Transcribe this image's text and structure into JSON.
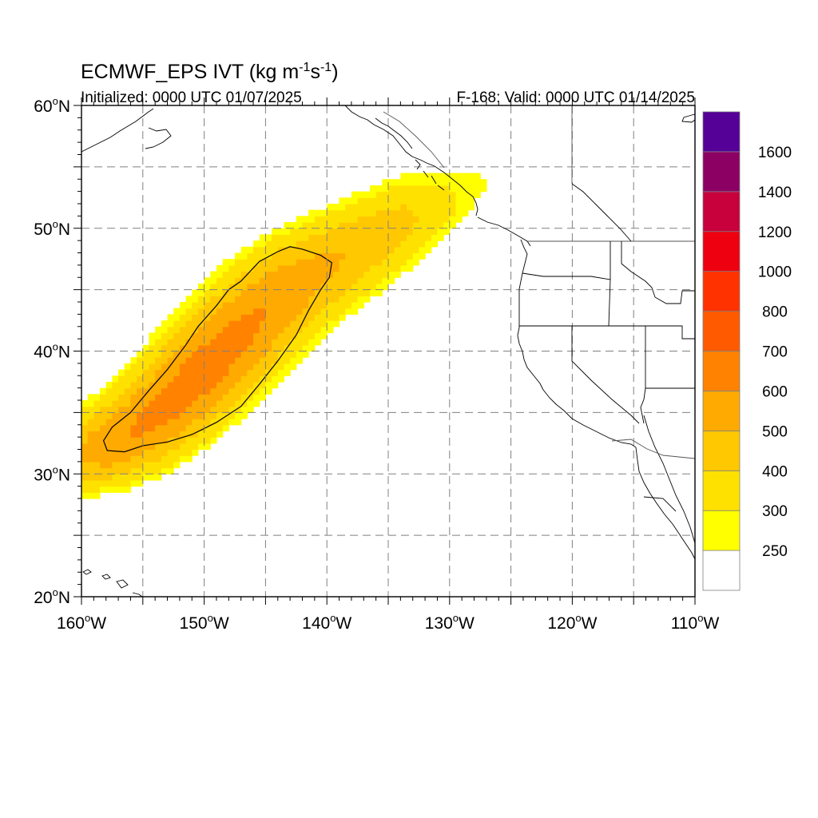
{
  "title": {
    "model": "ECMWF_EPS",
    "field": "IVT",
    "units_prefix": "(kg m",
    "units_exp1": "-1",
    "units_mid": "s",
    "units_exp2": "-1",
    "units_suffix": ")"
  },
  "subtitle_left": "Initialized: 0000 UTC 01/07/2025",
  "subtitle_right": "F-168: Valid: 0000 UTC 01/14/2025",
  "map": {
    "lon_range": [
      -160,
      -110
    ],
    "lat_range": [
      20,
      60
    ],
    "grid": "dashed",
    "lon_labels": [
      {
        "lon": -160,
        "text": "160",
        "hemi": "W"
      },
      {
        "lon": -150,
        "text": "150",
        "hemi": "W"
      },
      {
        "lon": -140,
        "text": "140",
        "hemi": "W"
      },
      {
        "lon": -130,
        "text": "130",
        "hemi": "W"
      },
      {
        "lon": -120,
        "text": "120",
        "hemi": "W"
      },
      {
        "lon": -110,
        "text": "110",
        "hemi": "W"
      }
    ],
    "lat_labels": [
      {
        "lat": 60,
        "text": "60",
        "hemi": "N"
      },
      {
        "lat": 50,
        "text": "50",
        "hemi": "N"
      },
      {
        "lat": 40,
        "text": "40",
        "hemi": "N"
      },
      {
        "lat": 30,
        "text": "30",
        "hemi": "N"
      },
      {
        "lat": 20,
        "text": "20",
        "hemi": "N"
      }
    ],
    "colors": {
      "grid": "#808080",
      "coast": "#000000",
      "border": "#000000",
      "frame": "#000000"
    }
  },
  "chart_data": {
    "type": "heatmap",
    "variable": "IVT",
    "units": "kg m-1 s-1",
    "color_levels": [
      {
        "min": 0,
        "max": 250,
        "color": "#ffffff"
      },
      {
        "min": 250,
        "max": 300,
        "color": "#ffff00"
      },
      {
        "min": 300,
        "max": 400,
        "color": "#ffe100"
      },
      {
        "min": 400,
        "max": 500,
        "color": "#ffc800"
      },
      {
        "min": 500,
        "max": 600,
        "color": "#ffaa00"
      },
      {
        "min": 600,
        "max": 700,
        "color": "#ff8200"
      },
      {
        "min": 700,
        "max": 800,
        "color": "#ff5a00"
      },
      {
        "min": 800,
        "max": 1000,
        "color": "#ff3200"
      },
      {
        "min": 1000,
        "max": 1200,
        "color": "#ee0010"
      },
      {
        "min": 1200,
        "max": 1400,
        "color": "#c8003c"
      },
      {
        "min": 1400,
        "max": 1600,
        "color": "#8c0064"
      },
      {
        "min": 1600,
        "max": 1800,
        "color": "#550096"
      }
    ],
    "colorbar_labels": [
      "250",
      "300",
      "400",
      "500",
      "600",
      "700",
      "800",
      "1000",
      "1200",
      "1400",
      "1600"
    ],
    "plume": {
      "axis": [
        {
          "lon": -160.0,
          "lat": 31.5
        },
        {
          "lon": -157.5,
          "lat": 32.5
        },
        {
          "lon": -155.0,
          "lat": 34.0
        },
        {
          "lon": -152.5,
          "lat": 36.0
        },
        {
          "lon": -150.0,
          "lat": 38.5
        },
        {
          "lon": -147.5,
          "lat": 41.0
        },
        {
          "lon": -145.0,
          "lat": 43.5
        },
        {
          "lon": -142.5,
          "lat": 45.5
        },
        {
          "lon": -140.0,
          "lat": 47.0
        },
        {
          "lon": -137.5,
          "lat": 48.5
        },
        {
          "lon": -135.0,
          "lat": 50.0
        },
        {
          "lon": -132.5,
          "lat": 51.5
        },
        {
          "lon": -130.0,
          "lat": 52.5
        },
        {
          "lon": -128.0,
          "lat": 53.5
        }
      ],
      "max_ivt": 650
    },
    "contour": {
      "level": 500,
      "ring": [
        {
          "lon": -157.9,
          "lat": 31.9
        },
        {
          "lon": -156.5,
          "lat": 31.8
        },
        {
          "lon": -155.0,
          "lat": 32.3
        },
        {
          "lon": -153.0,
          "lat": 32.6
        },
        {
          "lon": -151.0,
          "lat": 33.2
        },
        {
          "lon": -149.0,
          "lat": 34.2
        },
        {
          "lon": -147.0,
          "lat": 35.5
        },
        {
          "lon": -145.5,
          "lat": 37.3
        },
        {
          "lon": -144.0,
          "lat": 39.2
        },
        {
          "lon": -142.5,
          "lat": 41.3
        },
        {
          "lon": -141.5,
          "lat": 43.3
        },
        {
          "lon": -140.5,
          "lat": 45.0
        },
        {
          "lon": -139.8,
          "lat": 46.0
        },
        {
          "lon": -139.6,
          "lat": 47.2
        },
        {
          "lon": -140.5,
          "lat": 47.8
        },
        {
          "lon": -142.0,
          "lat": 48.3
        },
        {
          "lon": -143.0,
          "lat": 48.5
        },
        {
          "lon": -144.0,
          "lat": 48.1
        },
        {
          "lon": -145.5,
          "lat": 47.3
        },
        {
          "lon": -147.0,
          "lat": 45.7
        },
        {
          "lon": -148.0,
          "lat": 45.0
        },
        {
          "lon": -149.0,
          "lat": 43.7
        },
        {
          "lon": -150.5,
          "lat": 42.0
        },
        {
          "lon": -151.5,
          "lat": 40.5
        },
        {
          "lon": -153.0,
          "lat": 38.5
        },
        {
          "lon": -154.5,
          "lat": 36.8
        },
        {
          "lon": -156.0,
          "lat": 35.0
        },
        {
          "lon": -157.5,
          "lat": 33.8
        },
        {
          "lon": -158.2,
          "lat": 32.7
        }
      ]
    }
  }
}
